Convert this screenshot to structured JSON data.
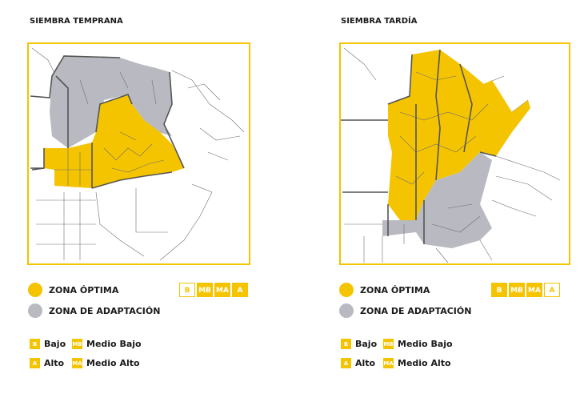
{
  "panels": [
    {
      "title": "SIEMBRA TEMPRANA",
      "legend": [
        {
          "label": "ZONA ÓPTIMA",
          "color": "#f5c400"
        },
        {
          "label": "ZONA DE ADAPTACIÓN",
          "color": "#b9bac1"
        }
      ],
      "badges": [
        {
          "label": "B",
          "filled": false
        },
        {
          "label": "MB",
          "filled": true
        },
        {
          "label": "MA",
          "filled": true
        },
        {
          "label": "A",
          "filled": true
        }
      ],
      "key": [
        {
          "code": "B",
          "label": "Bajo"
        },
        {
          "code": "MB",
          "label": "Medio Bajo"
        },
        {
          "code": "A",
          "label": "Alto"
        },
        {
          "code": "MA",
          "label": "Medio Alto"
        }
      ]
    },
    {
      "title": "SIEMBRA TARDÍA",
      "legend": [
        {
          "label": "ZONA ÓPTIMA",
          "color": "#f5c400"
        },
        {
          "label": "ZONA DE ADAPTACIÓN",
          "color": "#b9bac1"
        }
      ],
      "badges": [
        {
          "label": "B",
          "filled": true
        },
        {
          "label": "MB",
          "filled": true
        },
        {
          "label": "MA",
          "filled": true
        },
        {
          "label": "A",
          "filled": false
        }
      ],
      "key": [
        {
          "code": "B",
          "label": "Bajo"
        },
        {
          "code": "MB",
          "label": "Medio Bajo"
        },
        {
          "code": "A",
          "label": "Alto"
        },
        {
          "code": "MA",
          "label": "Medio Alto"
        }
      ]
    }
  ]
}
